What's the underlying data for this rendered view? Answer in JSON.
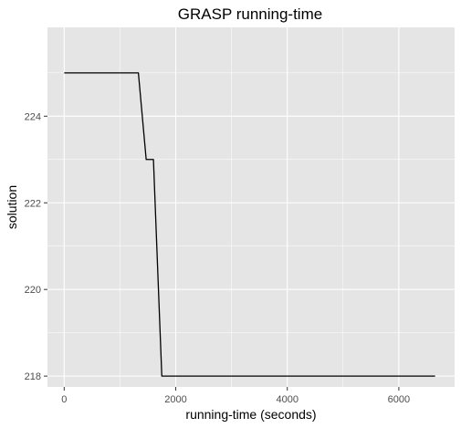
{
  "chart_data": {
    "type": "line",
    "title": "GRASP running-time",
    "xlabel": "running-time (seconds)",
    "ylabel": "solution",
    "xlim": [
      -300,
      7000
    ],
    "ylim": [
      217.75,
      226.05
    ],
    "x_ticks": [
      0,
      2000,
      4000,
      6000
    ],
    "x_tick_labels": [
      "0",
      "2000",
      "4000",
      "6000"
    ],
    "y_ticks": [
      218,
      220,
      222,
      224
    ],
    "y_tick_labels": [
      "218",
      "220",
      "222",
      "224"
    ],
    "grid": true,
    "legend": "none",
    "series": [
      {
        "x": [
          0,
          1330,
          1470,
          1600,
          1750,
          6650
        ],
        "y": [
          225,
          225,
          223,
          223,
          218,
          218
        ]
      }
    ],
    "colors": {
      "panel_background": "#e5e5e5",
      "grid": "#ffffff",
      "line": "#000000",
      "tick_text": "#4d4d4d",
      "tick_mark": "#333333"
    }
  }
}
